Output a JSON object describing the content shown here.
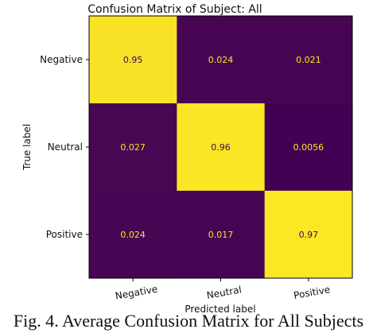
{
  "caption": "Fig. 4. Average Confusion Matrix for All Subjects",
  "chart_data": {
    "type": "heatmap",
    "title": "Confusion Matrix of Subject: All",
    "xlabel": "Predicted label",
    "ylabel": "True label",
    "x_categories": [
      "Negative",
      "Neutral",
      "Positive"
    ],
    "y_categories": [
      "Negative",
      "Neutral",
      "Positive"
    ],
    "values": [
      [
        0.95,
        0.024,
        0.021
      ],
      [
        0.027,
        0.96,
        0.0056
      ],
      [
        0.024,
        0.017,
        0.97
      ]
    ],
    "value_labels": [
      [
        "0.95",
        "0.024",
        "0.021"
      ],
      [
        "0.027",
        "0.96",
        "0.0056"
      ],
      [
        "0.024",
        "0.017",
        "0.97"
      ]
    ],
    "colormap": "viridis",
    "colors": {
      "low": "#440154",
      "high": "#fde725",
      "text_on_dark": "#fde725",
      "text_on_light": "#440154"
    }
  }
}
